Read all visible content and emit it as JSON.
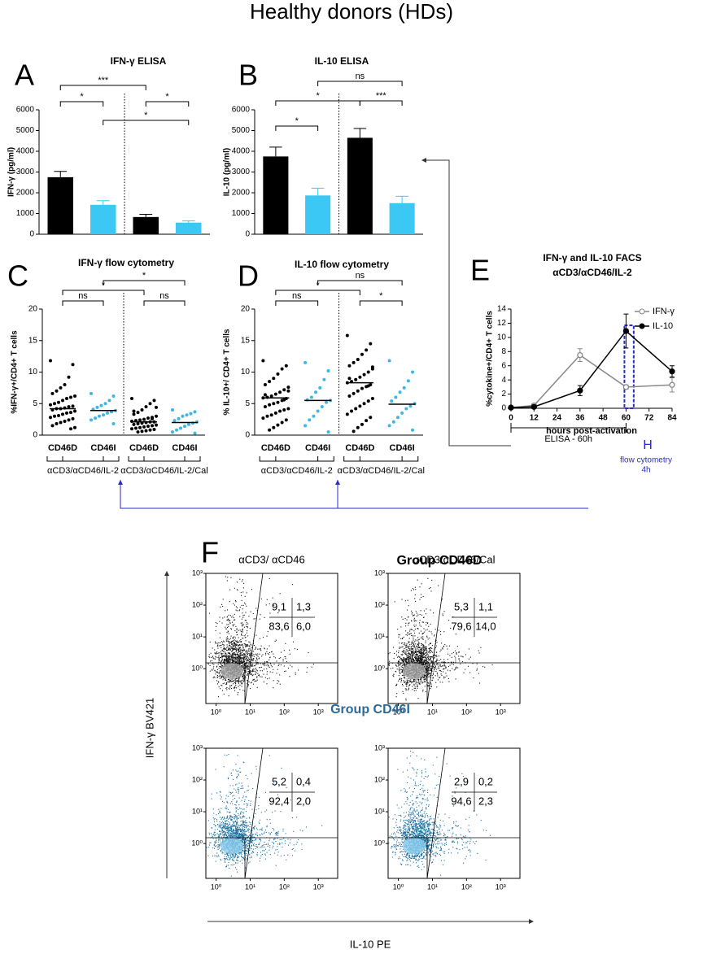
{
  "title": "Healthy donors (HDs)",
  "chart_data": [
    {
      "type": "bar",
      "panel": "A",
      "title": "IFN-γ ELISA",
      "y_label": "IFN-γ (pg/ml)",
      "categories": [
        null,
        null,
        null,
        null
      ],
      "values": [
        2750,
        1420,
        830,
        560
      ],
      "errors": [
        280,
        200,
        130,
        80
      ],
      "colors": [
        "#000000",
        "#3cc8f5",
        "#000000",
        "#3cc8f5"
      ],
      "ylim": [
        0,
        6000
      ],
      "yticks": [
        0,
        1000,
        2000,
        3000,
        4000,
        5000,
        6000
      ],
      "brackets": [
        {
          "label": "***",
          "between": [
            0,
            2
          ]
        },
        {
          "label": "*",
          "between": [
            0,
            1
          ]
        },
        {
          "label": "*",
          "between": [
            2,
            3
          ]
        },
        {
          "label": "*",
          "between": [
            1,
            3
          ]
        }
      ]
    },
    {
      "type": "bar",
      "panel": "B",
      "title": "IL-10 ELISA",
      "y_label": "IL-10 (pg/ml)",
      "categories": [
        null,
        null,
        null,
        null
      ],
      "values": [
        3750,
        1870,
        4650,
        1500
      ],
      "errors": [
        450,
        350,
        450,
        330
      ],
      "colors": [
        "#000000",
        "#3cc8f5",
        "#000000",
        "#3cc8f5"
      ],
      "ylim": [
        0,
        6000
      ],
      "yticks": [
        0,
        1000,
        2000,
        3000,
        4000,
        5000,
        6000
      ],
      "brackets": [
        {
          "label": "ns",
          "between": [
            1,
            3
          ]
        },
        {
          "label": "*",
          "between": [
            0,
            2
          ]
        },
        {
          "label": "***",
          "between": [
            2,
            3
          ]
        },
        {
          "label": "*",
          "between": [
            0,
            1
          ]
        }
      ]
    },
    {
      "type": "strip",
      "panel": "C",
      "title": "IFN-γ flow cytometry",
      "y_label": "%IFN-γ+/CD4+ T cells",
      "categories": [
        "CD46D",
        "CD46I",
        "CD46D",
        "CD46I"
      ],
      "groups": [
        "αCD3/αCD46/IL-2",
        "αCD3/αCD46/IL-2/Cal"
      ],
      "colors": [
        "#000000",
        "#3cb6e6",
        "#000000",
        "#3cb6e6"
      ],
      "values": [
        [
          11.8,
          11.2,
          9.2,
          8.0,
          7.5,
          7.0,
          6.6,
          6.2,
          6.0,
          5.8,
          5.5,
          5.2,
          5.0,
          4.8,
          4.6,
          4.5,
          4.3,
          4.2,
          4.2,
          4.0,
          3.8,
          3.6,
          3.5,
          3.3,
          3.1,
          3.0,
          2.8,
          2.6,
          2.4,
          2.2,
          2.0,
          1.8,
          1.5,
          1.2,
          1.0
        ],
        [
          6.6,
          6.2,
          5.5,
          5.0,
          4.7,
          4.4,
          4.1,
          3.9,
          3.7,
          3.5,
          3.2,
          3.0,
          2.7,
          2.4,
          1.8
        ],
        [
          5.8,
          5.5,
          5.0,
          4.5,
          4.0,
          3.6,
          3.3,
          3.0,
          2.8,
          2.7,
          2.5,
          2.4,
          2.3,
          2.2,
          2.1,
          2.1,
          2.0,
          1.9,
          1.8,
          1.7,
          1.6,
          1.5,
          1.4,
          1.3,
          1.2,
          1.1,
          1.0,
          0.9,
          0.8,
          0.7,
          0.6,
          0.5,
          3.8,
          4.4,
          2.6
        ],
        [
          4.0,
          3.7,
          3.4,
          3.2,
          3.0,
          2.6,
          2.3,
          2.1,
          1.9,
          1.7,
          1.4,
          1.1,
          0.8,
          0.5,
          0.3
        ]
      ],
      "medians": [
        4.2,
        3.9,
        2.1,
        2.0
      ],
      "ylim": [
        0,
        20
      ],
      "yticks": [
        0,
        5,
        10,
        15,
        20
      ],
      "brackets": [
        {
          "label": "*",
          "between": [
            1,
            3
          ]
        },
        {
          "label": "*",
          "between": [
            0,
            2
          ]
        },
        {
          "label": "ns",
          "between": [
            0,
            1
          ]
        },
        {
          "label": "ns",
          "between": [
            2,
            3
          ]
        }
      ]
    },
    {
      "type": "strip",
      "panel": "D",
      "title": "IL-10 flow cytometry",
      "y_label": "% IL-10+/ CD4+ T cells",
      "categories": [
        "CD46D",
        "CD46I",
        "CD46D",
        "CD46I"
      ],
      "groups": [
        "αCD3/αCD46/IL-2",
        "αCD3/αCD46/IL-2/Cal"
      ],
      "colors": [
        "#000000",
        "#3cb6e6",
        "#000000",
        "#3cb6e6"
      ],
      "values": [
        [
          11.8,
          11.0,
          10.5,
          9.7,
          9.0,
          8.5,
          8.0,
          7.6,
          7.2,
          6.8,
          6.5,
          6.2,
          6.0,
          5.9,
          5.8,
          5.5,
          5.2,
          5.0,
          4.8,
          4.5,
          4.2,
          4.0,
          3.8,
          3.5,
          3.2,
          3.0,
          2.7,
          2.4,
          2.0,
          1.6,
          1.2,
          0.8,
          6.4,
          7.0,
          5.6
        ],
        [
          11.5,
          10.2,
          8.8,
          7.5,
          6.8,
          6.0,
          5.6,
          5.5,
          5.2,
          4.5,
          3.8,
          3.0,
          2.4,
          1.5,
          0.5
        ],
        [
          15.8,
          14.5,
          13.5,
          12.8,
          12.0,
          11.5,
          11.0,
          10.5,
          10.0,
          9.6,
          9.2,
          8.8,
          8.5,
          8.3,
          8.0,
          7.7,
          7.4,
          7.0,
          6.6,
          6.2,
          5.8,
          5.4,
          5.0,
          4.6,
          4.2,
          3.8,
          3.3,
          2.8,
          2.3,
          1.7,
          1.2,
          0.6,
          9.0,
          10.8,
          7.8
        ],
        [
          11.8,
          10.0,
          8.6,
          7.5,
          6.8,
          6.0,
          5.4,
          5.0,
          4.6,
          4.2,
          3.5,
          2.8,
          2.1,
          1.5,
          0.8
        ]
      ],
      "medians": [
        5.9,
        5.5,
        8.3,
        4.9
      ],
      "ylim": [
        0,
        20
      ],
      "yticks": [
        0,
        5,
        10,
        15,
        20
      ],
      "brackets": [
        {
          "label": "ns",
          "between": [
            1,
            3
          ]
        },
        {
          "label": "*",
          "between": [
            0,
            2
          ]
        },
        {
          "label": "ns",
          "between": [
            0,
            1
          ]
        },
        {
          "label": "*",
          "between": [
            2,
            3
          ]
        }
      ]
    },
    {
      "type": "line",
      "panel": "E",
      "title": "IFN-γ and IL-10 FACS",
      "subtitle": "αCD3/αCD46/IL-2",
      "x_label": "hours post-activation",
      "y_label": "%cytokine+/CD4+ T cells",
      "x": [
        0,
        12,
        36,
        60,
        84
      ],
      "series": [
        {
          "name": "IFN-γ",
          "color": "#888888",
          "values": [
            0.1,
            0.4,
            7.5,
            3.0,
            3.3
          ],
          "errors": [
            0,
            0.2,
            0.9,
            0.3,
            1.0
          ]
        },
        {
          "name": "IL-10",
          "color": "#000000",
          "values": [
            0.1,
            0.2,
            2.5,
            10.9,
            5.2
          ],
          "errors": [
            0,
            0.1,
            0.7,
            2.4,
            0.8
          ]
        }
      ],
      "xlim": [
        0,
        84
      ],
      "xticks": [
        0,
        12,
        24,
        36,
        48,
        60,
        72,
        84
      ],
      "ylim": [
        0,
        14
      ],
      "yticks": [
        0,
        2,
        4,
        6,
        8,
        10,
        12,
        14
      ],
      "legend": "upper right",
      "annotations": [
        "ELISA - 60h",
        "H",
        "flow cytometry",
        "4h"
      ]
    }
  ],
  "panel_f": {
    "panel": "F",
    "x_label": "IL-10 PE",
    "y_label": "IFN-γ BV421",
    "log_scale": true,
    "xlim": [
      0.5,
      3700
    ],
    "ylim": [
      0.08,
      1000
    ],
    "xticks": [
      {
        "value": 1,
        "label": "10⁰"
      },
      {
        "value": 10,
        "label": "10¹"
      },
      {
        "value": 100,
        "label": "10²"
      },
      {
        "value": 1000,
        "label": "10³"
      }
    ],
    "yticks": [
      {
        "value": 1,
        "label": "10⁰"
      },
      {
        "value": 10,
        "label": "10¹"
      },
      {
        "value": 100,
        "label": "10²"
      },
      {
        "value": 1000,
        "label": "10³"
      }
    ],
    "groups": [
      {
        "title": "Group CD46D",
        "plots": [
          {
            "title": "αCD3/ αCD46",
            "quadrants": [
              9.1,
              1.3,
              83.6,
              6.0
            ],
            "quadrant_labels": [
              "9,1",
              "1,3",
              "83,6",
              "6,0"
            ]
          },
          {
            "title": "αCD3/αCD46/Cal",
            "quadrants": [
              5.3,
              1.1,
              79.6,
              14.0
            ],
            "quadrant_labels": [
              "5,3",
              "1,1",
              "79,6",
              "14,0"
            ]
          }
        ]
      },
      {
        "title": "Group CD46I",
        "plots": [
          {
            "quadrants": [
              5.2,
              0.4,
              92.4,
              2.0
            ],
            "quadrant_labels": [
              "5,2",
              "0,4",
              "92,4",
              "2,0"
            ]
          },
          {
            "quadrants": [
              2.9,
              0.2,
              94.6,
              2.3
            ],
            "quadrant_labels": [
              "2,9",
              "0,2",
              "94,6",
              "2,3"
            ]
          }
        ]
      }
    ]
  }
}
